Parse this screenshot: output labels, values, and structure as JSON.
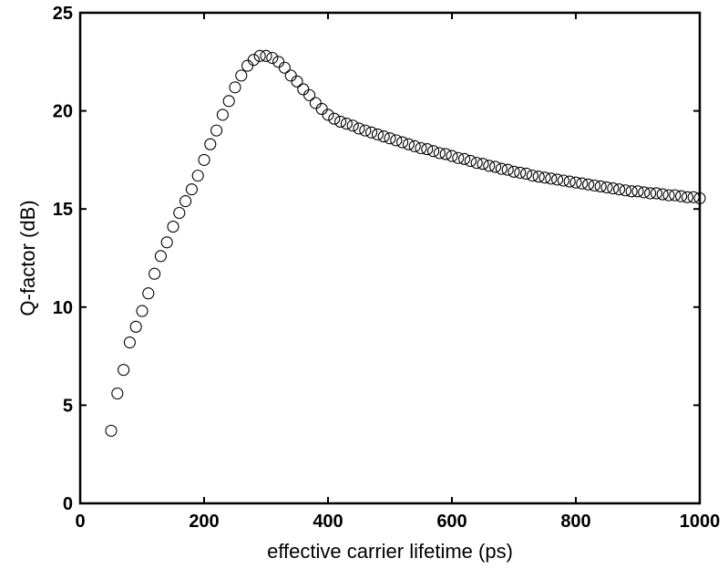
{
  "chart_data": {
    "type": "scatter",
    "title": "",
    "xlabel": "effective carrier lifetime (ps)",
    "ylabel": "Q-factor (dB)",
    "xlim": [
      0,
      1000
    ],
    "ylim": [
      0,
      25
    ],
    "xticks": [
      0,
      200,
      400,
      600,
      800,
      1000
    ],
    "yticks": [
      0,
      5,
      10,
      15,
      20,
      25
    ],
    "grid": false,
    "legend": "none",
    "marker": "open-circle",
    "marker_color": "#000000",
    "x": [
      50,
      60,
      70,
      80,
      90,
      100,
      110,
      120,
      130,
      140,
      150,
      160,
      170,
      180,
      190,
      200,
      210,
      220,
      230,
      240,
      250,
      260,
      270,
      280,
      290,
      300,
      310,
      320,
      330,
      340,
      350,
      360,
      370,
      380,
      390,
      400,
      410,
      420,
      430,
      440,
      450,
      460,
      470,
      480,
      490,
      500,
      510,
      520,
      530,
      540,
      550,
      560,
      570,
      580,
      590,
      600,
      610,
      620,
      630,
      640,
      650,
      660,
      670,
      680,
      690,
      700,
      710,
      720,
      730,
      740,
      750,
      760,
      770,
      780,
      790,
      800,
      810,
      820,
      830,
      840,
      850,
      860,
      870,
      880,
      890,
      900,
      910,
      920,
      930,
      940,
      950,
      960,
      970,
      980,
      990,
      1000
    ],
    "y": [
      3.7,
      5.6,
      6.8,
      8.2,
      9.0,
      9.8,
      10.7,
      11.7,
      12.6,
      13.3,
      14.1,
      14.8,
      15.4,
      16.0,
      16.7,
      17.5,
      18.3,
      19.0,
      19.8,
      20.5,
      21.2,
      21.8,
      22.3,
      22.6,
      22.8,
      22.8,
      22.7,
      22.5,
      22.2,
      21.8,
      21.5,
      21.1,
      20.8,
      20.4,
      20.1,
      19.8,
      19.6,
      19.45,
      19.35,
      19.25,
      19.1,
      19.0,
      18.9,
      18.8,
      18.7,
      18.6,
      18.5,
      18.4,
      18.3,
      18.2,
      18.1,
      18.05,
      17.95,
      17.85,
      17.8,
      17.7,
      17.6,
      17.55,
      17.45,
      17.35,
      17.3,
      17.2,
      17.15,
      17.05,
      17.0,
      16.9,
      16.85,
      16.8,
      16.7,
      16.65,
      16.6,
      16.55,
      16.5,
      16.45,
      16.4,
      16.35,
      16.3,
      16.25,
      16.2,
      16.15,
      16.1,
      16.05,
      16.0,
      15.95,
      15.9,
      15.9,
      15.85,
      15.8,
      15.8,
      15.75,
      15.7,
      15.7,
      15.65,
      15.6,
      15.6,
      15.55
    ]
  }
}
